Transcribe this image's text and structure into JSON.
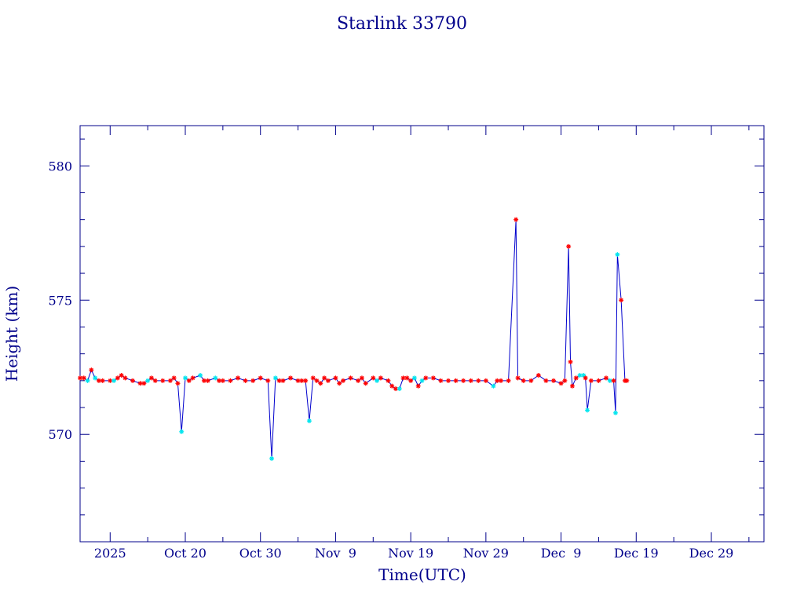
{
  "chart_data": {
    "type": "line",
    "title": "Starlink 33790",
    "xlabel": "Time(UTC)",
    "ylabel": "Height (km)",
    "xlim": [
      "2025-10-06",
      "2026-01-05"
    ],
    "ylim": [
      566,
      581.5
    ],
    "x_tick_labels": [
      {
        "date": "2025-10-10",
        "label": "2025"
      },
      {
        "date": "2025-10-20",
        "label": "Oct 20"
      },
      {
        "date": "2025-10-30",
        "label": "Oct 30"
      },
      {
        "date": "2025-11-09",
        "label": "Nov  9"
      },
      {
        "date": "2025-11-19",
        "label": "Nov 19"
      },
      {
        "date": "2025-11-29",
        "label": "Nov 29"
      },
      {
        "date": "2025-12-09",
        "label": "Dec  9"
      },
      {
        "date": "2025-12-19",
        "label": "Dec 19"
      },
      {
        "date": "2025-12-29",
        "label": "Dec 29"
      }
    ],
    "y_ticks": [
      570,
      575,
      580
    ],
    "grid": false,
    "colors": {
      "axis": "#00008b",
      "line": "#0000cd",
      "marker_red": "#ff0000",
      "marker_cyan": "#00e5ee"
    },
    "series": [
      {
        "marker": "asterisk",
        "points": [
          {
            "x": "2025-10-06",
            "y": 572.1,
            "c": "red"
          },
          {
            "x": "2025-10-06 12:00",
            "y": 572.1,
            "c": "red"
          },
          {
            "x": "2025-10-07",
            "y": 572.0,
            "c": "cyan"
          },
          {
            "x": "2025-10-07 12:00",
            "y": 572.4,
            "c": "red"
          },
          {
            "x": "2025-10-08",
            "y": 572.1,
            "c": "cyan"
          },
          {
            "x": "2025-10-08 12:00",
            "y": 572.0,
            "c": "red"
          },
          {
            "x": "2025-10-09",
            "y": 572.0,
            "c": "red"
          },
          {
            "x": "2025-10-10",
            "y": 572.0,
            "c": "red"
          },
          {
            "x": "2025-10-10 12:00",
            "y": 572.0,
            "c": "cyan"
          },
          {
            "x": "2025-10-11",
            "y": 572.1,
            "c": "red"
          },
          {
            "x": "2025-10-11 12:00",
            "y": 572.2,
            "c": "red"
          },
          {
            "x": "2025-10-12",
            "y": 572.1,
            "c": "red"
          },
          {
            "x": "2025-10-13",
            "y": 572.0,
            "c": "red"
          },
          {
            "x": "2025-10-14",
            "y": 571.9,
            "c": "red"
          },
          {
            "x": "2025-10-14 12:00",
            "y": 571.9,
            "c": "red"
          },
          {
            "x": "2025-10-15",
            "y": 572.0,
            "c": "cyan"
          },
          {
            "x": "2025-10-15 12:00",
            "y": 572.1,
            "c": "red"
          },
          {
            "x": "2025-10-16",
            "y": 572.0,
            "c": "red"
          },
          {
            "x": "2025-10-17",
            "y": 572.0,
            "c": "red"
          },
          {
            "x": "2025-10-18",
            "y": 572.0,
            "c": "red"
          },
          {
            "x": "2025-10-18 12:00",
            "y": 572.1,
            "c": "red"
          },
          {
            "x": "2025-10-19",
            "y": 571.9,
            "c": "red"
          },
          {
            "x": "2025-10-19 12:00",
            "y": 570.1,
            "c": "cyan"
          },
          {
            "x": "2025-10-20",
            "y": 572.1,
            "c": "cyan"
          },
          {
            "x": "2025-10-20 12:00",
            "y": 572.0,
            "c": "red"
          },
          {
            "x": "2025-10-21",
            "y": 572.1,
            "c": "red"
          },
          {
            "x": "2025-10-22",
            "y": 572.2,
            "c": "cyan"
          },
          {
            "x": "2025-10-22 12:00",
            "y": 572.0,
            "c": "red"
          },
          {
            "x": "2025-10-23",
            "y": 572.0,
            "c": "red"
          },
          {
            "x": "2025-10-24",
            "y": 572.1,
            "c": "cyan"
          },
          {
            "x": "2025-10-24 12:00",
            "y": 572.0,
            "c": "red"
          },
          {
            "x": "2025-10-25",
            "y": 572.0,
            "c": "red"
          },
          {
            "x": "2025-10-26",
            "y": 572.0,
            "c": "red"
          },
          {
            "x": "2025-10-27",
            "y": 572.1,
            "c": "red"
          },
          {
            "x": "2025-10-28",
            "y": 572.0,
            "c": "red"
          },
          {
            "x": "2025-10-29",
            "y": 572.0,
            "c": "red"
          },
          {
            "x": "2025-10-30",
            "y": 572.1,
            "c": "red"
          },
          {
            "x": "2025-10-31",
            "y": 572.0,
            "c": "red"
          },
          {
            "x": "2025-10-31 12:00",
            "y": 569.1,
            "c": "cyan"
          },
          {
            "x": "2025-11-01",
            "y": 572.1,
            "c": "cyan"
          },
          {
            "x": "2025-11-01 12:00",
            "y": 572.0,
            "c": "red"
          },
          {
            "x": "2025-11-02",
            "y": 572.0,
            "c": "red"
          },
          {
            "x": "2025-11-03",
            "y": 572.1,
            "c": "red"
          },
          {
            "x": "2025-11-04",
            "y": 572.0,
            "c": "red"
          },
          {
            "x": "2025-11-04 12:00",
            "y": 572.0,
            "c": "red"
          },
          {
            "x": "2025-11-05",
            "y": 572.0,
            "c": "red"
          },
          {
            "x": "2025-11-05 12:00",
            "y": 570.5,
            "c": "cyan"
          },
          {
            "x": "2025-11-06",
            "y": 572.1,
            "c": "red"
          },
          {
            "x": "2025-11-06 12:00",
            "y": 572.0,
            "c": "red"
          },
          {
            "x": "2025-11-07",
            "y": 571.9,
            "c": "red"
          },
          {
            "x": "2025-11-07 12:00",
            "y": 572.1,
            "c": "red"
          },
          {
            "x": "2025-11-08",
            "y": 572.0,
            "c": "red"
          },
          {
            "x": "2025-11-09",
            "y": 572.1,
            "c": "red"
          },
          {
            "x": "2025-11-09 12:00",
            "y": 571.9,
            "c": "red"
          },
          {
            "x": "2025-11-10",
            "y": 572.0,
            "c": "red"
          },
          {
            "x": "2025-11-11",
            "y": 572.1,
            "c": "red"
          },
          {
            "x": "2025-11-12",
            "y": 572.0,
            "c": "red"
          },
          {
            "x": "2025-11-12 12:00",
            "y": 572.1,
            "c": "red"
          },
          {
            "x": "2025-11-13",
            "y": 571.9,
            "c": "red"
          },
          {
            "x": "2025-11-14",
            "y": 572.1,
            "c": "red"
          },
          {
            "x": "2025-11-14 12:00",
            "y": 572.0,
            "c": "cyan"
          },
          {
            "x": "2025-11-15",
            "y": 572.1,
            "c": "red"
          },
          {
            "x": "2025-11-16",
            "y": 572.0,
            "c": "red"
          },
          {
            "x": "2025-11-16 12:00",
            "y": 571.8,
            "c": "red"
          },
          {
            "x": "2025-11-17",
            "y": 571.7,
            "c": "red"
          },
          {
            "x": "2025-11-17 12:00",
            "y": 571.7,
            "c": "cyan"
          },
          {
            "x": "2025-11-18",
            "y": 572.1,
            "c": "red"
          },
          {
            "x": "2025-11-18 12:00",
            "y": 572.1,
            "c": "red"
          },
          {
            "x": "2025-11-19",
            "y": 572.0,
            "c": "red"
          },
          {
            "x": "2025-11-19 12:00",
            "y": 572.1,
            "c": "cyan"
          },
          {
            "x": "2025-11-20",
            "y": 571.8,
            "c": "red"
          },
          {
            "x": "2025-11-20 12:00",
            "y": 572.0,
            "c": "cyan"
          },
          {
            "x": "2025-11-21",
            "y": 572.1,
            "c": "red"
          },
          {
            "x": "2025-11-22",
            "y": 572.1,
            "c": "red"
          },
          {
            "x": "2025-11-23",
            "y": 572.0,
            "c": "red"
          },
          {
            "x": "2025-11-24",
            "y": 572.0,
            "c": "red"
          },
          {
            "x": "2025-11-25",
            "y": 572.0,
            "c": "red"
          },
          {
            "x": "2025-11-26",
            "y": 572.0,
            "c": "red"
          },
          {
            "x": "2025-11-27",
            "y": 572.0,
            "c": "red"
          },
          {
            "x": "2025-11-28",
            "y": 572.0,
            "c": "red"
          },
          {
            "x": "2025-11-29",
            "y": 572.0,
            "c": "red"
          },
          {
            "x": "2025-11-30",
            "y": 571.8,
            "c": "cyan"
          },
          {
            "x": "2025-11-30 12:00",
            "y": 572.0,
            "c": "red"
          },
          {
            "x": "2025-12-01",
            "y": 572.0,
            "c": "red"
          },
          {
            "x": "2025-12-02",
            "y": 572.0,
            "c": "red"
          },
          {
            "x": "2025-12-03",
            "y": 578.0,
            "c": "red"
          },
          {
            "x": "2025-12-03 06:00",
            "y": 572.1,
            "c": "red"
          },
          {
            "x": "2025-12-04",
            "y": 572.0,
            "c": "red"
          },
          {
            "x": "2025-12-05",
            "y": 572.0,
            "c": "red"
          },
          {
            "x": "2025-12-06",
            "y": 572.2,
            "c": "red"
          },
          {
            "x": "2025-12-07",
            "y": 572.0,
            "c": "red"
          },
          {
            "x": "2025-12-08",
            "y": 572.0,
            "c": "red"
          },
          {
            "x": "2025-12-09",
            "y": 571.9,
            "c": "red"
          },
          {
            "x": "2025-12-09 12:00",
            "y": 572.0,
            "c": "red"
          },
          {
            "x": "2025-12-10",
            "y": 577.0,
            "c": "red"
          },
          {
            "x": "2025-12-10 06:00",
            "y": 572.7,
            "c": "red"
          },
          {
            "x": "2025-12-10 12:00",
            "y": 571.8,
            "c": "red"
          },
          {
            "x": "2025-12-11",
            "y": 572.1,
            "c": "red"
          },
          {
            "x": "2025-12-11 12:00",
            "y": 572.2,
            "c": "cyan"
          },
          {
            "x": "2025-12-12",
            "y": 572.2,
            "c": "cyan"
          },
          {
            "x": "2025-12-12 06:00",
            "y": 572.1,
            "c": "red"
          },
          {
            "x": "2025-12-12 12:00",
            "y": 570.9,
            "c": "cyan"
          },
          {
            "x": "2025-12-13",
            "y": 572.0,
            "c": "red"
          },
          {
            "x": "2025-12-14",
            "y": 572.0,
            "c": "red"
          },
          {
            "x": "2025-12-15",
            "y": 572.1,
            "c": "red"
          },
          {
            "x": "2025-12-15 12:00",
            "y": 572.0,
            "c": "cyan"
          },
          {
            "x": "2025-12-16",
            "y": 572.0,
            "c": "red"
          },
          {
            "x": "2025-12-16 06:00",
            "y": 570.8,
            "c": "cyan"
          },
          {
            "x": "2025-12-16 12:00",
            "y": 576.7,
            "c": "cyan"
          },
          {
            "x": "2025-12-17",
            "y": 575.0,
            "c": "red"
          },
          {
            "x": "2025-12-17 12:00",
            "y": 572.0,
            "c": "red"
          },
          {
            "x": "2025-12-17 18:00",
            "y": 572.0,
            "c": "red"
          }
        ]
      }
    ]
  }
}
